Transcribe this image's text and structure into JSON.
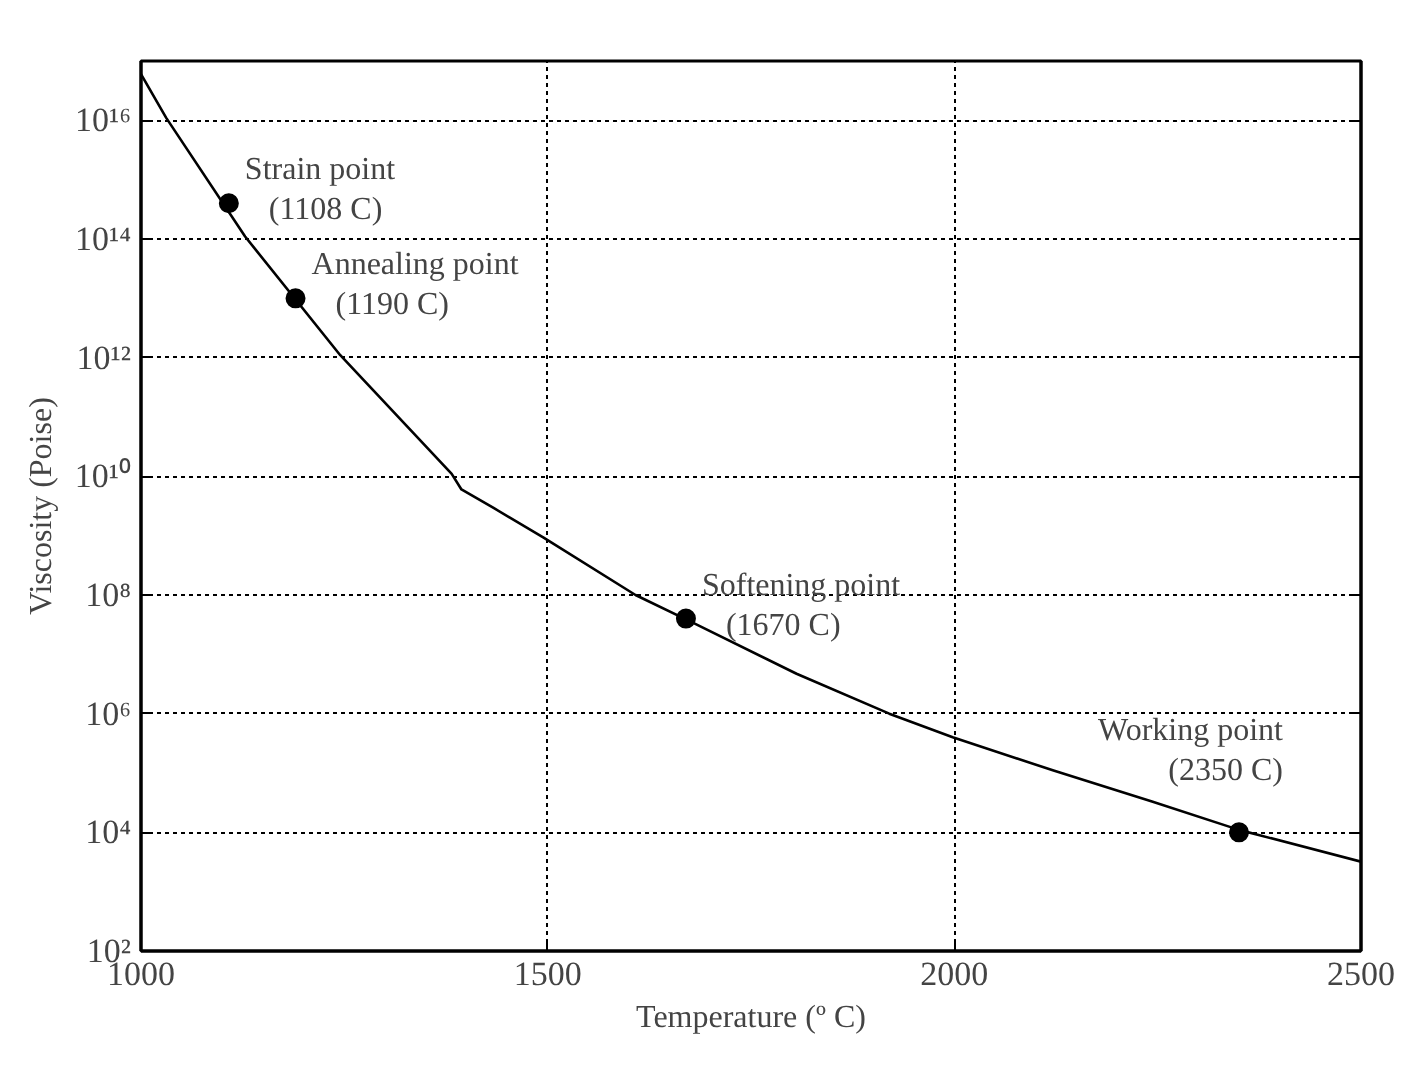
{
  "chart_data": {
    "type": "line",
    "xlabel": "Temperature (º C)",
    "ylabel": "Viscosity (Poise)",
    "xlim": [
      1000,
      2500
    ],
    "xticks": [
      1000,
      1500,
      2000,
      2500
    ],
    "ylim": [
      100.0,
      1e+17
    ],
    "log": "y",
    "yticks": [
      {
        "value": 100.0,
        "label": "10²"
      },
      {
        "value": 10000.0,
        "label": "10⁴"
      },
      {
        "value": 1000000.0,
        "label": "10⁶"
      },
      {
        "value": 100000000.0,
        "label": "10⁸"
      },
      {
        "value": 10000000000.0,
        "label": "10¹⁰"
      },
      {
        "value": 1000000000000.0,
        "label": "10¹²"
      },
      {
        "value": 100000000000000.0,
        "label": "10¹⁴"
      },
      {
        "value": 1e+16,
        "label": "10¹⁶"
      }
    ],
    "grid": true,
    "line_style": "solid",
    "series": [
      {
        "color": "#000000",
        "marker": "none",
        "x": [
          1000,
          1031,
          1128,
          1245,
          1382,
          1394,
          1434,
          1495,
          1608,
          1679,
          1806,
          1920,
          1998,
          2122,
          2243,
          2350,
          2500
        ],
        "values": [
          6e+16,
          1.1e+16,
          110000000000000.0,
          1100000000000.0,
          11000000000.0,
          6000000000.0,
          2900000000.0,
          930000000.0,
          100000000.0,
          34000000.0,
          4700000.0,
          1000000.0,
          400000.0,
          110000.0,
          33000.0,
          11000.0,
          3200.0
        ]
      },
      {
        "type": "scatter",
        "color": "#000000",
        "marker": "circle",
        "x": [
          1108,
          1190,
          1670,
          2350
        ],
        "values": [
          400000000000000.0,
          10000000000000.0,
          40000000.0,
          10000.0
        ]
      }
    ],
    "annotations": [
      {
        "text": "Strain point\n(1108 C)",
        "x": 1108,
        "y": 400000000000000.0
      },
      {
        "text": "Annealing point\n(1190 C)",
        "x": 1190,
        "y": 10000000000000.0
      },
      {
        "text": "Softening point\n(1670 C)",
        "x": 1670,
        "y": 40000000.0
      },
      {
        "text": "Working point\n(2350 C)",
        "x": 2350,
        "y": 10000.0
      }
    ]
  }
}
